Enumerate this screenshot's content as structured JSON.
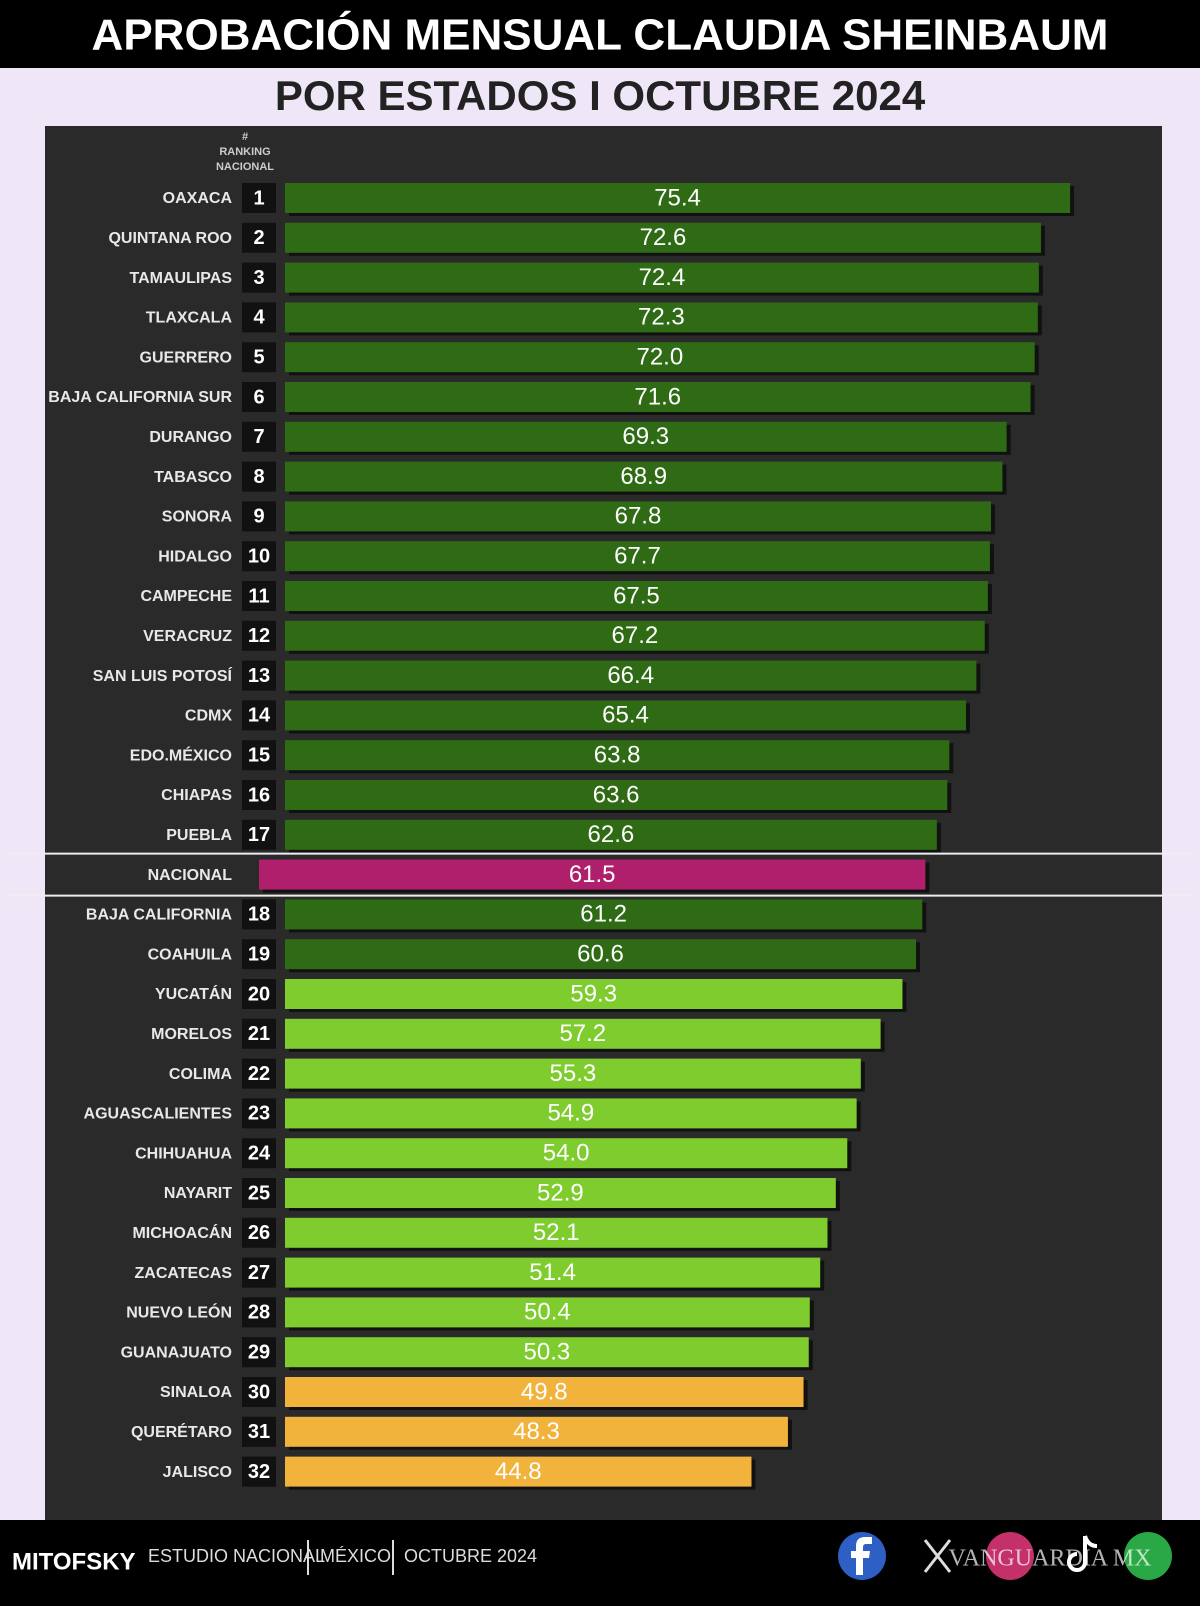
{
  "chart_data": {
    "type": "bar",
    "orientation": "horizontal",
    "title": "APROBACIÓN MENSUAL CLAUDIA SHEINBAUM",
    "subtitle": "POR ESTADOS I OCTUBRE 2024",
    "rank_header": "# RANKING NACIONAL",
    "categories": [
      "OAXACA",
      "QUINTANA ROO",
      "TAMAULIPAS",
      "TLAXCALA",
      "GUERRERO",
      "BAJA CALIFORNIA SUR",
      "DURANGO",
      "TABASCO",
      "SONORA",
      "HIDALGO",
      "CAMPECHE",
      "VERACRUZ",
      "SAN LUIS POTOSÍ",
      "CDMX",
      "EDO.MÉXICO",
      "CHIAPAS",
      "PUEBLA",
      "NACIONAL",
      "BAJA CALIFORNIA",
      "COAHUILA",
      "YUCATÁN",
      "MORELOS",
      "COLIMA",
      "AGUASCALIENTES",
      "CHIHUAHUA",
      "NAYARIT",
      "MICHOACÁN",
      "ZACATECAS",
      "NUEVO LEÓN",
      "GUANAJUATO",
      "SINALOA",
      "QUERÉTARO",
      "JALISCO"
    ],
    "ranks": [
      1,
      2,
      3,
      4,
      5,
      6,
      7,
      8,
      9,
      10,
      11,
      12,
      13,
      14,
      15,
      16,
      17,
      null,
      18,
      19,
      20,
      21,
      22,
      23,
      24,
      25,
      26,
      27,
      28,
      29,
      30,
      31,
      32
    ],
    "values": [
      75.4,
      72.6,
      72.4,
      72.3,
      72.0,
      71.6,
      69.3,
      68.9,
      67.8,
      67.7,
      67.5,
      67.2,
      66.4,
      65.4,
      63.8,
      63.6,
      62.6,
      61.5,
      61.2,
      60.6,
      59.3,
      57.2,
      55.3,
      54.9,
      54.0,
      52.9,
      52.1,
      51.4,
      50.4,
      50.3,
      49.8,
      48.3,
      44.8
    ],
    "value_labels": [
      "75.4",
      "72.6",
      "72.4",
      "72.3",
      "72.0",
      "71.6",
      "69.3",
      "68.9",
      "67.8",
      "67.7",
      "67.5",
      "67.2",
      "66.4",
      "65.4",
      "63.8",
      "63.6",
      "62.6",
      "61.5",
      "61.2",
      "60.6",
      "59.3",
      "57.2",
      "55.3",
      "54.9",
      "54.0",
      "52.9",
      "52.1",
      "51.4",
      "50.4",
      "50.3",
      "49.8",
      "48.3",
      "44.8"
    ],
    "colors": [
      "#2f6b14",
      "#2f6b14",
      "#2f6b14",
      "#2f6b14",
      "#2f6b14",
      "#2f6b14",
      "#2f6b14",
      "#2f6b14",
      "#2f6b14",
      "#2f6b14",
      "#2f6b14",
      "#2f6b14",
      "#2f6b14",
      "#2f6b14",
      "#2f6b14",
      "#2f6b14",
      "#2f6b14",
      "#b01f6b",
      "#2f6b14",
      "#2f6b14",
      "#7fcc2e",
      "#7fcc2e",
      "#7fcc2e",
      "#7fcc2e",
      "#7fcc2e",
      "#7fcc2e",
      "#7fcc2e",
      "#7fcc2e",
      "#7fcc2e",
      "#7fcc2e",
      "#f2b33c",
      "#f2b33c",
      "#f2b33c"
    ],
    "xlim": [
      0,
      80
    ],
    "footer": {
      "brand": "MITOFSKY",
      "study": "ESTUDIO NACIONAL",
      "place": "MÉXICO",
      "date": "OCTUBRE 2024",
      "watermark": "VANGUARDIA MX"
    }
  }
}
